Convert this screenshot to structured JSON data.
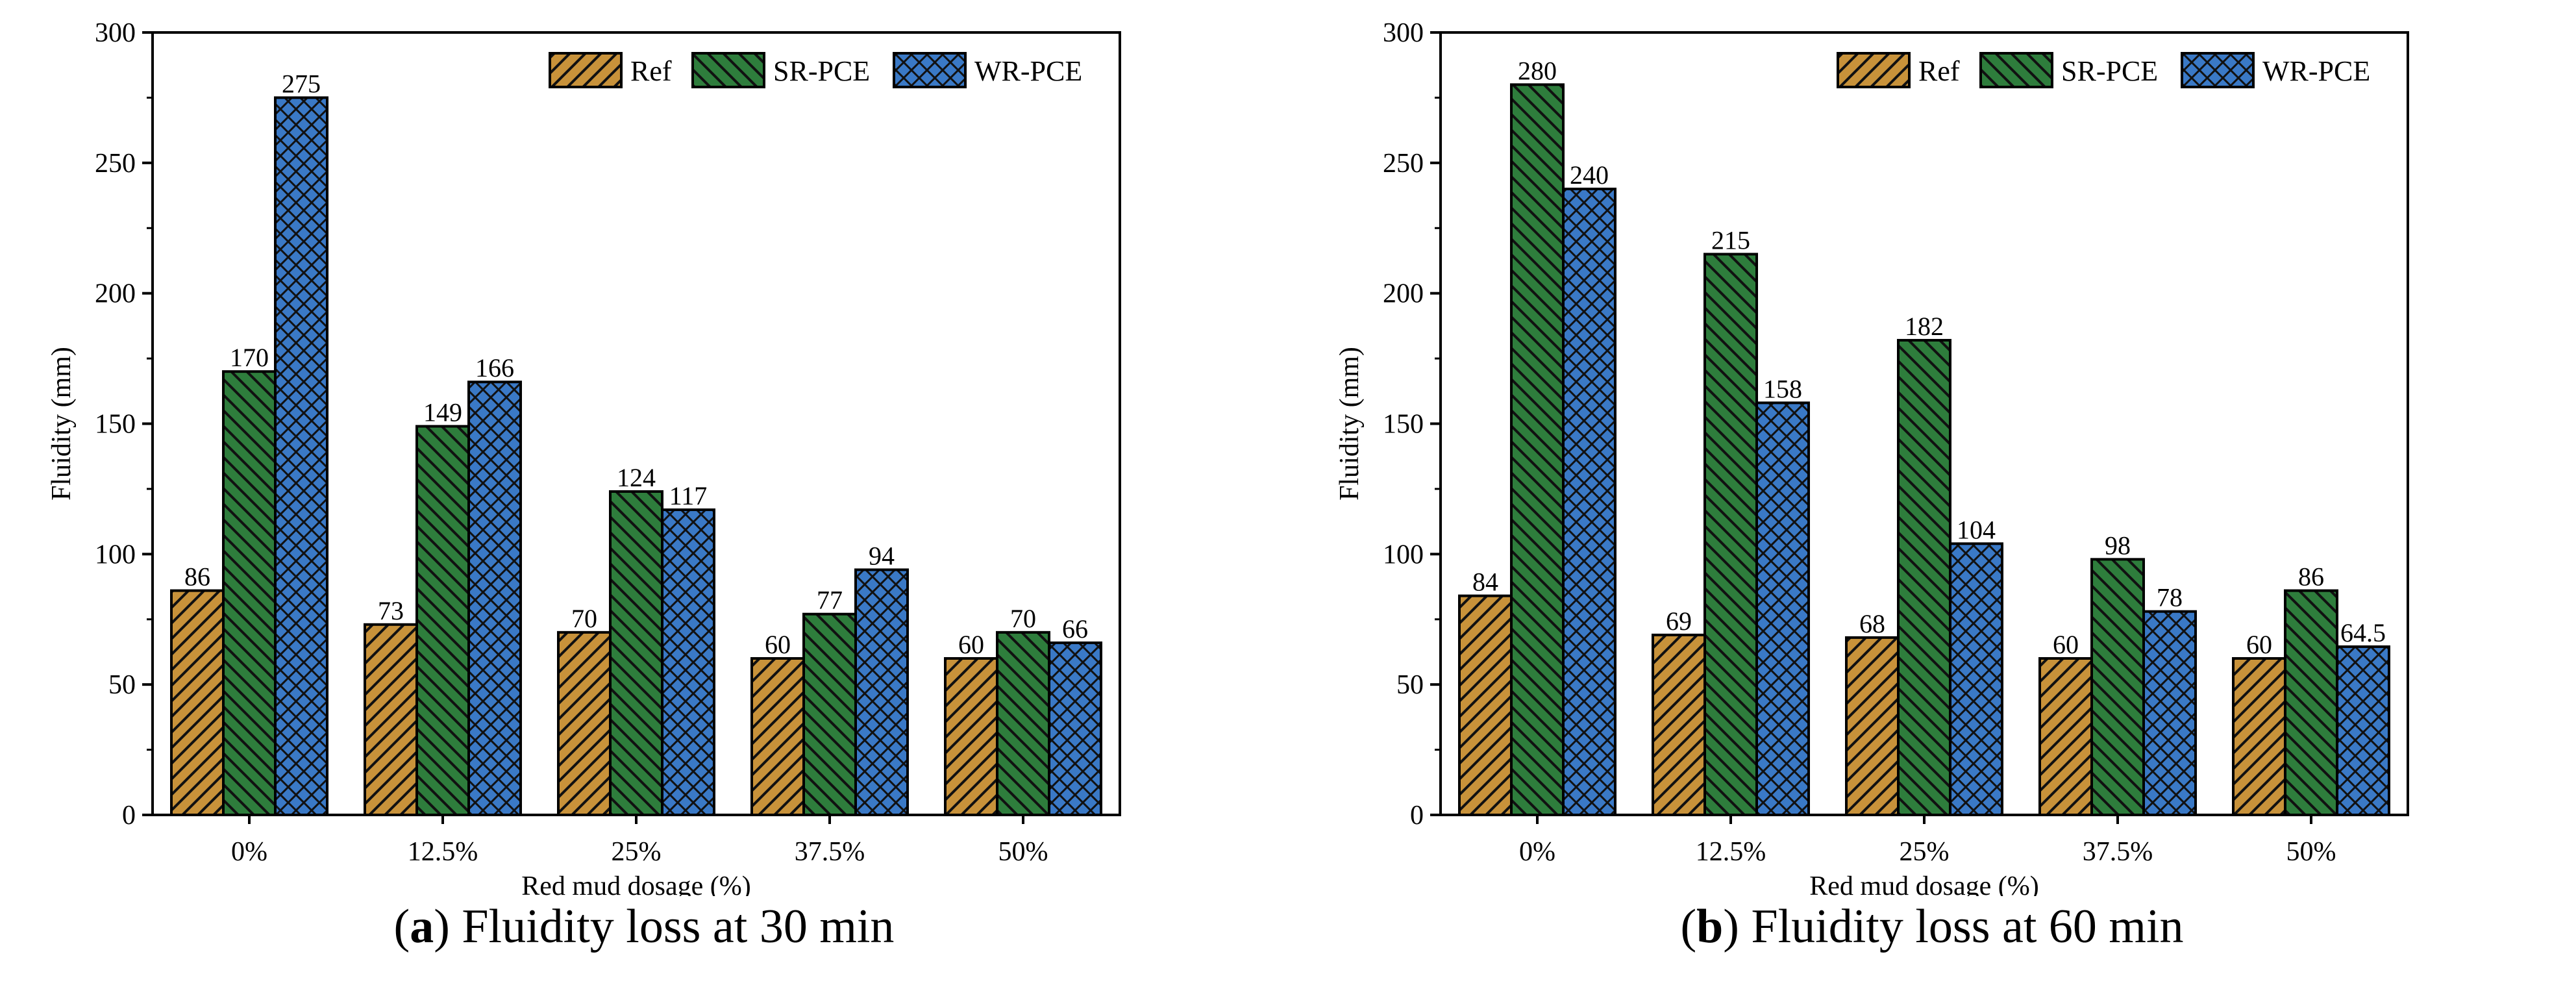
{
  "colors": {
    "Ref": "#c8923a",
    "SR-PCE": "#2e7d3c",
    "WR-PCE": "#3a79c6"
  },
  "chart_data": [
    {
      "type": "bar",
      "caption_letter": "a",
      "caption_text": "Fluidity loss at 30 min",
      "xlabel": "Red mud dosage (%)",
      "ylabel": "Fluidity (mm)",
      "ylim": [
        0,
        300
      ],
      "yticks": [
        "0",
        "50",
        "100",
        "150",
        "200",
        "250",
        "300"
      ],
      "categories": [
        "0%",
        "12.5%",
        "25%",
        "37.5%",
        "50%"
      ],
      "legend_position": "top-right",
      "series": [
        {
          "name": "Ref",
          "values": [
            86,
            73,
            70,
            60,
            60
          ],
          "labels": [
            "86",
            "73",
            "70",
            "60",
            "60"
          ]
        },
        {
          "name": "SR-PCE",
          "values": [
            170,
            149,
            124,
            77,
            70
          ],
          "labels": [
            "170",
            "149",
            "124",
            "77",
            "70"
          ]
        },
        {
          "name": "WR-PCE",
          "values": [
            275,
            166,
            117,
            94,
            66
          ],
          "labels": [
            "275",
            "166",
            "117",
            "94",
            "66"
          ]
        }
      ]
    },
    {
      "type": "bar",
      "caption_letter": "b",
      "caption_text": "Fluidity loss at 60 min",
      "xlabel": "Red mud dosage (%)",
      "ylabel": "Fluidity (mm)",
      "ylim": [
        0,
        300
      ],
      "yticks": [
        "0",
        "50",
        "100",
        "150",
        "200",
        "250",
        "300"
      ],
      "categories": [
        "0%",
        "12.5%",
        "25%",
        "37.5%",
        "50%"
      ],
      "legend_position": "top-right",
      "series": [
        {
          "name": "Ref",
          "values": [
            84,
            69,
            68,
            60,
            60
          ],
          "labels": [
            "84",
            "69",
            "68",
            "60",
            "60"
          ]
        },
        {
          "name": "SR-PCE",
          "values": [
            280,
            215,
            182,
            98,
            86
          ],
          "labels": [
            "280",
            "215",
            "182",
            "98",
            "86"
          ]
        },
        {
          "name": "WR-PCE",
          "values": [
            240,
            158,
            104,
            78,
            64.5
          ],
          "labels": [
            "240",
            "158",
            "104",
            "78",
            "64.5"
          ]
        }
      ]
    }
  ]
}
